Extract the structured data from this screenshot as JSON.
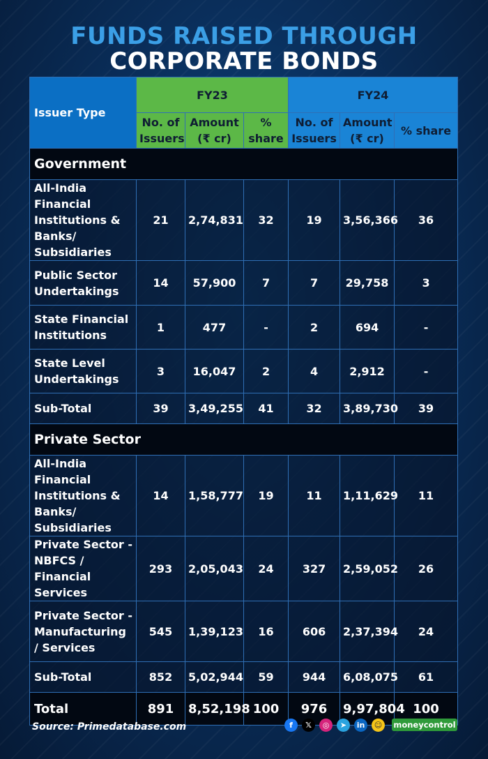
{
  "title": {
    "line1": "FUNDS RAISED THROUGH",
    "line2": "CORPORATE BONDS"
  },
  "table": {
    "issuer_header": "Issuer Type",
    "fy23_header": "FY23",
    "fy24_header": "FY24",
    "subheaders": [
      "No. of Issuers",
      "Amount (₹ cr)",
      "% share",
      "No. of Issuers",
      "Amount (₹ cr)",
      "% share"
    ],
    "sections": [
      {
        "name": "Government",
        "rows": [
          {
            "label": "All-India Financial Institutions & Banks/ Subsidiaries",
            "values": [
              "21",
              "2,74,831",
              "32",
              "19",
              "3,56,366",
              "36"
            ]
          },
          {
            "label": "Public Sector Undertakings",
            "values": [
              "14",
              "57,900",
              "7",
              "7",
              "29,758",
              "3"
            ]
          },
          {
            "label": "State Financial Institutions",
            "values": [
              "1",
              "477",
              "-",
              "2",
              "694",
              "-"
            ]
          },
          {
            "label": "State Level Undertakings",
            "values": [
              "3",
              "16,047",
              "2",
              "4",
              "2,912",
              "-"
            ]
          },
          {
            "label": "Sub-Total",
            "values": [
              "39",
              "3,49,255",
              "41",
              "32",
              "3,89,730",
              "39"
            ]
          }
        ]
      },
      {
        "name": "Private Sector",
        "rows": [
          {
            "label": "All-India Financial Institutions & Banks/ Subsidiaries",
            "values": [
              "14",
              "1,58,777",
              "19",
              "11",
              "1,11,629",
              "11"
            ]
          },
          {
            "label": "Private Sector - NBFCS / Financial Services",
            "values": [
              "293",
              "2,05,043",
              "24",
              "327",
              "2,59,052",
              "26"
            ]
          },
          {
            "label": "Private Sector - Manufacturing / Services",
            "values": [
              "545",
              "1,39,123",
              "16",
              "606",
              "2,37,394",
              "24"
            ]
          },
          {
            "label": "Sub-Total",
            "values": [
              "852",
              "5,02,944",
              "59",
              "944",
              "6,08,075",
              "61"
            ]
          }
        ]
      }
    ],
    "total": {
      "label": "Total",
      "values": [
        "891",
        "8,52,198",
        "100",
        "976",
        "9,97,804",
        "100"
      ]
    }
  },
  "footer": {
    "source": "Source: Primedatabase.com",
    "social_icons": [
      "facebook-icon",
      "x-icon",
      "instagram-icon",
      "telegram-icon",
      "linkedin-icon",
      "snapchat-icon"
    ],
    "logo": "moneycontrol"
  },
  "colors": {
    "fy23": "#5cb847",
    "fy24": "#1a84d6",
    "title_accent": "#3b9fe6",
    "background": "#0a2f5c"
  }
}
